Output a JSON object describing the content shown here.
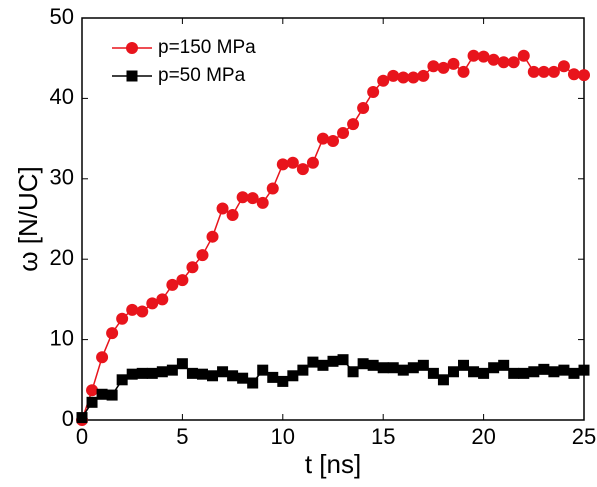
{
  "chart_data": {
    "type": "line",
    "x_label": "t [ns]",
    "y_label": "ω [N/UC]",
    "x": [
      0,
      0.5,
      1,
      1.5,
      2,
      2.5,
      3,
      3.5,
      4,
      4.5,
      5,
      5.5,
      6,
      6.5,
      7,
      7.5,
      8,
      8.5,
      9,
      9.5,
      10,
      10.5,
      11,
      11.5,
      12,
      12.5,
      13,
      13.5,
      14,
      14.5,
      15,
      15.5,
      16,
      16.5,
      17,
      17.5,
      18,
      18.5,
      19,
      19.5,
      20,
      20.5,
      21,
      21.5,
      22,
      22.5,
      23,
      23.5,
      24,
      24.5,
      25
    ],
    "series": [
      {
        "name": "p=150 MPa",
        "color": "#e8141c",
        "marker": "circle",
        "values": [
          0,
          3.7,
          7.8,
          10.8,
          12.6,
          13.7,
          13.5,
          14.5,
          15.0,
          16.8,
          17.4,
          19.0,
          20.5,
          22.8,
          26.3,
          25.5,
          27.7,
          27.6,
          27.0,
          28.8,
          31.8,
          32.0,
          31.2,
          32.0,
          35.0,
          34.7,
          35.7,
          36.8,
          38.8,
          40.8,
          42.2,
          42.8,
          42.6,
          42.6,
          42.8,
          44.0,
          43.8,
          44.3,
          43.3,
          45.3,
          45.2,
          44.8,
          44.5,
          44.5,
          45.3,
          43.3,
          43.3,
          43.3,
          44.0,
          43.0,
          42.9
        ]
      },
      {
        "name": "p=50 MPa",
        "color": "#000000",
        "marker": "square",
        "values": [
          0.3,
          2.2,
          3.2,
          3.1,
          5.0,
          5.7,
          5.8,
          5.8,
          6.0,
          6.2,
          7.0,
          5.8,
          5.7,
          5.5,
          6.0,
          5.5,
          5.2,
          4.6,
          6.2,
          5.3,
          4.8,
          5.5,
          6.2,
          7.2,
          6.8,
          7.3,
          7.5,
          6.0,
          7.0,
          6.8,
          6.5,
          6.5,
          6.2,
          6.5,
          6.8,
          5.8,
          5.0,
          6.0,
          6.8,
          6.0,
          5.8,
          6.5,
          6.8,
          5.8,
          5.8,
          6.0,
          6.3,
          6.0,
          6.2,
          5.8,
          6.2
        ]
      }
    ],
    "xlim": [
      0,
      25
    ],
    "xticks": [
      0,
      5,
      10,
      15,
      20,
      25
    ],
    "ylim": [
      0,
      50
    ],
    "yticks": [
      0,
      10,
      20,
      30,
      40,
      50
    ],
    "grid": false,
    "legend": "upper-left"
  }
}
